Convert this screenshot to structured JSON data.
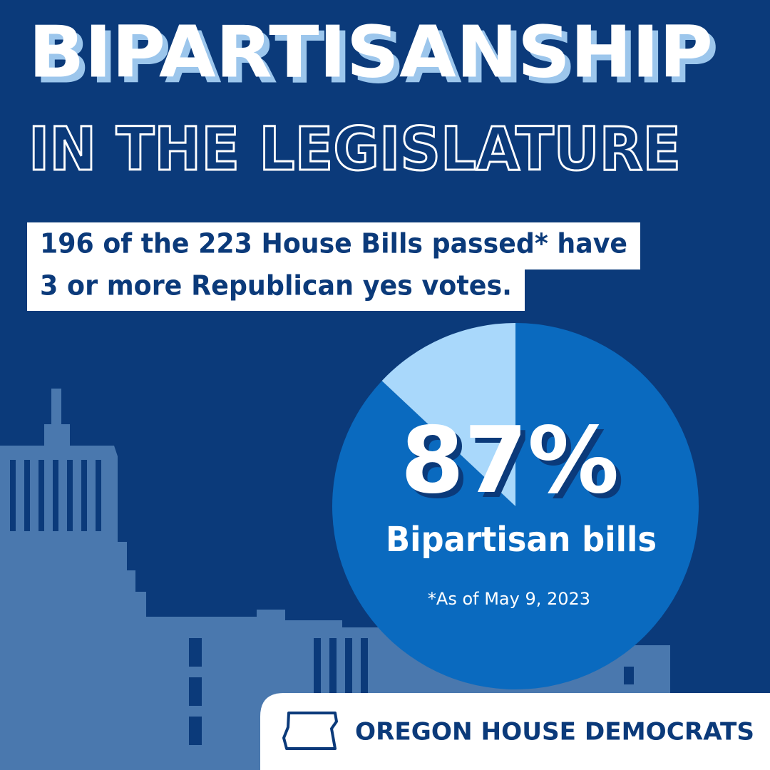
{
  "chart_data": {
    "type": "pie",
    "title": "BIPARTISANSHIP",
    "subtitle": "IN THE LEGISLATURE",
    "description": [
      "196 of the 223 House Bills passed* have",
      "3 or more Republican yes votes."
    ],
    "categories": [
      "Bipartisan bills",
      null
    ],
    "values": [
      87,
      13
    ],
    "value_labels": [
      "87%",
      null
    ],
    "colors": [
      "#0a6abf",
      "#a9d8fb"
    ],
    "note": "*As of May 9, 2023",
    "footer": "OREGON HOUSE DEMOCRATS"
  }
}
